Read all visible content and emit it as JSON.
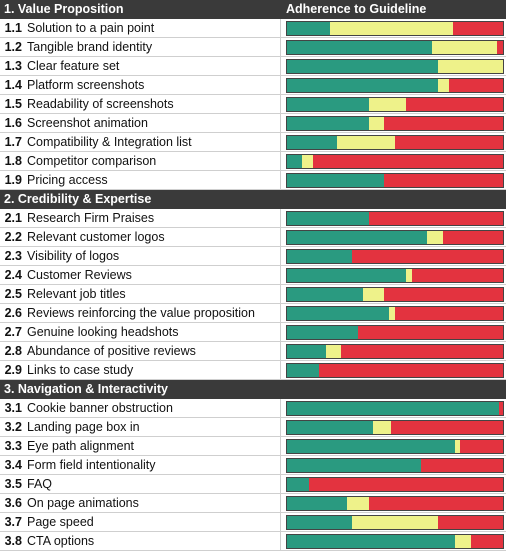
{
  "chart_data": {
    "type": "bar",
    "column_header": "Adherence to Guideline",
    "colors": {
      "green": "#2a9a80",
      "yellow": "#eef28a",
      "red": "#e3333f",
      "header_bg": "#3a3a3a"
    },
    "segment_order": [
      "green",
      "yellow",
      "red"
    ],
    "sections": [
      {
        "title": "1. Value Proposition",
        "show_column_header": true,
        "items": [
          {
            "num": "1.1",
            "label": "Solution to a pain point",
            "values": [
              20,
              57,
              23
            ]
          },
          {
            "num": "1.2",
            "label": "Tangible brand identity",
            "values": [
              67,
              30,
              3
            ]
          },
          {
            "num": "1.3",
            "label": "Clear feature set",
            "values": [
              70,
              30,
              0
            ]
          },
          {
            "num": "1.4",
            "label": "Platform screenshots",
            "values": [
              70,
              5,
              25
            ]
          },
          {
            "num": "1.5",
            "label": "Readability of screenshots",
            "values": [
              38,
              17,
              45
            ]
          },
          {
            "num": "1.6",
            "label": "Screenshot animation",
            "values": [
              38,
              7,
              55
            ]
          },
          {
            "num": "1.7",
            "label": "Compatibility & Integration list",
            "values": [
              23,
              27,
              50
            ]
          },
          {
            "num": "1.8",
            "label": "Competitor comparison",
            "values": [
              7,
              5,
              88
            ]
          },
          {
            "num": "1.9",
            "label": "Pricing access",
            "values": [
              45,
              0,
              55
            ]
          }
        ]
      },
      {
        "title": "2. Credibility & Expertise",
        "show_column_header": false,
        "items": [
          {
            "num": "2.1",
            "label": "Research Firm Praises",
            "values": [
              38,
              0,
              62
            ]
          },
          {
            "num": "2.2",
            "label": "Relevant customer logos",
            "values": [
              65,
              7,
              28
            ]
          },
          {
            "num": "2.3",
            "label": "Visibility of logos",
            "values": [
              30,
              0,
              70
            ]
          },
          {
            "num": "2.4",
            "label": "Customer Reviews",
            "values": [
              55,
              3,
              42
            ]
          },
          {
            "num": "2.5",
            "label": "Relevant job titles",
            "values": [
              35,
              10,
              55
            ]
          },
          {
            "num": "2.6",
            "label": "Reviews reinforcing the value proposition",
            "values": [
              47,
              3,
              50
            ]
          },
          {
            "num": "2.7",
            "label": "Genuine looking headshots",
            "values": [
              33,
              0,
              67
            ]
          },
          {
            "num": "2.8",
            "label": "Abundance of positive reviews",
            "values": [
              18,
              7,
              75
            ]
          },
          {
            "num": "2.9",
            "label": "Links to case study",
            "values": [
              15,
              0,
              85
            ]
          }
        ]
      },
      {
        "title": "3. Navigation & Interactivity",
        "show_column_header": false,
        "items": [
          {
            "num": "3.1",
            "label": "Cookie banner obstruction",
            "values": [
              98,
              0,
              2
            ]
          },
          {
            "num": "3.2",
            "label": "Landing page box in",
            "values": [
              40,
              8,
              52
            ]
          },
          {
            "num": "3.3",
            "label": "Eye path alignment",
            "values": [
              78,
              2,
              20
            ]
          },
          {
            "num": "3.4",
            "label": "Form field intentionality",
            "values": [
              62,
              0,
              38
            ]
          },
          {
            "num": "3.5",
            "label": "FAQ",
            "values": [
              10,
              0,
              90
            ]
          },
          {
            "num": "3.6",
            "label": "On page animations",
            "values": [
              28,
              10,
              62
            ]
          },
          {
            "num": "3.7",
            "label": "Page speed",
            "values": [
              30,
              40,
              30
            ]
          },
          {
            "num": "3.8",
            "label": "CTA options",
            "values": [
              78,
              7,
              15
            ]
          }
        ]
      }
    ]
  }
}
